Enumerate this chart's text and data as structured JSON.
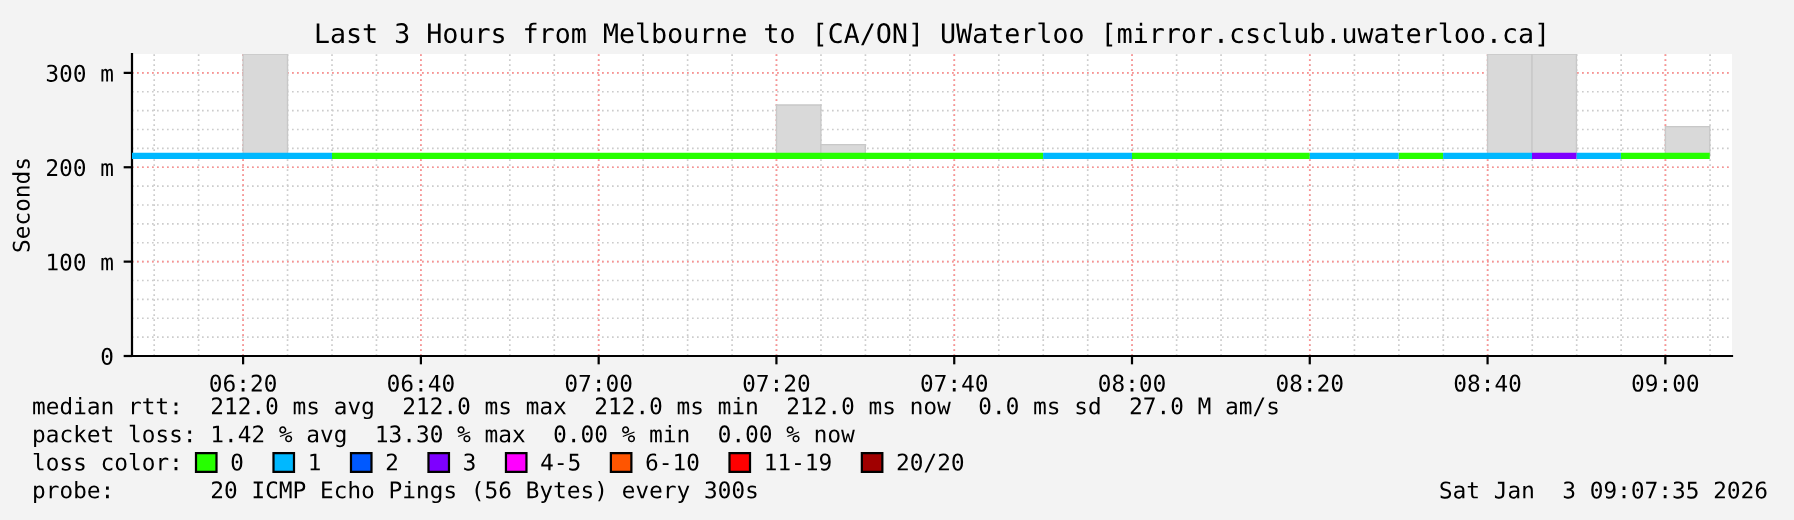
{
  "chart_data": {
    "type": "line",
    "title": "Last 3 Hours from Melbourne to [CA/ON] UWaterloo [mirror.csclub.uwaterloo.ca]",
    "ylabel": "Seconds",
    "legend_title": "loss color:",
    "legend": "bottom",
    "grid": true,
    "xlim": [
      6.125,
      9.125
    ],
    "xticks": [
      {
        "value": 6.3333,
        "label": "06:20"
      },
      {
        "value": 6.6667,
        "label": "06:40"
      },
      {
        "value": 7.0,
        "label": "07:00"
      },
      {
        "value": 7.3333,
        "label": "07:20"
      },
      {
        "value": 7.6667,
        "label": "07:40"
      },
      {
        "value": 8.0,
        "label": "08:00"
      },
      {
        "value": 8.3333,
        "label": "08:20"
      },
      {
        "value": 8.6667,
        "label": "08:40"
      },
      {
        "value": 9.0,
        "label": "09:00"
      }
    ],
    "ylim": [
      0,
      320
    ],
    "yticks": [
      {
        "value": 0,
        "label": "0"
      },
      {
        "value": 100,
        "label": "100 m"
      },
      {
        "value": 200,
        "label": "200 m"
      },
      {
        "value": 300,
        "label": "300 m"
      }
    ],
    "series": [
      {
        "type": "bar",
        "color": "#d9d9d9",
        "x": [
          6.375,
          7.375,
          7.4583,
          8.7083,
          8.7917,
          9.0417
        ],
        "base": [
          212,
          212,
          212,
          212,
          212,
          212
        ],
        "values": [
          108,
          54,
          12,
          108,
          108,
          31
        ]
      },
      {
        "name": "0",
        "color": "#26ff00",
        "x": [
          6.5,
          7.8333,
          7.9,
          8.0,
          8.3333,
          8.4,
          8.5,
          8.5833,
          8.7,
          8.9167,
          9.0833
        ],
        "values": [
          212,
          212,
          null,
          212,
          212,
          null,
          212,
          212,
          null,
          212,
          212
        ]
      },
      {
        "name": "1",
        "color": "#00b8ff",
        "x": [
          6.125,
          6.5,
          6.6,
          7.8333,
          8.0,
          8.1,
          8.3333,
          8.5,
          8.55,
          8.5833,
          8.75,
          8.8,
          8.8333,
          8.9167
        ],
        "values": [
          212,
          212,
          null,
          212,
          212,
          null,
          212,
          212,
          null,
          212,
          212,
          null,
          212,
          212
        ]
      },
      {
        "name": "2",
        "color": "#0059ff"
      },
      {
        "name": "3",
        "color": "#7e00ff",
        "x": [
          8.75,
          8.8333
        ],
        "values": [
          212,
          212
        ]
      },
      {
        "name": "4-5",
        "color": "#ff00ff"
      },
      {
        "name": "6-10",
        "color": "#ff5500"
      },
      {
        "name": "11-19",
        "color": "#ff0000"
      },
      {
        "name": "20/20",
        "color": "#a00000"
      }
    ],
    "annotations": [
      "median rtt:  212.0 ms avg  212.0 ms max  212.0 ms min  212.0 ms now  0.0 ms sd  27.0 M am/s",
      "packet loss: 1.42 % avg  13.30 % max  0.00 % min  0.00 % now",
      "probe:       20 ICMP Echo Pings (56 Bytes) every 300s",
      "Sat Jan  3 09:07:35 2026"
    ]
  }
}
